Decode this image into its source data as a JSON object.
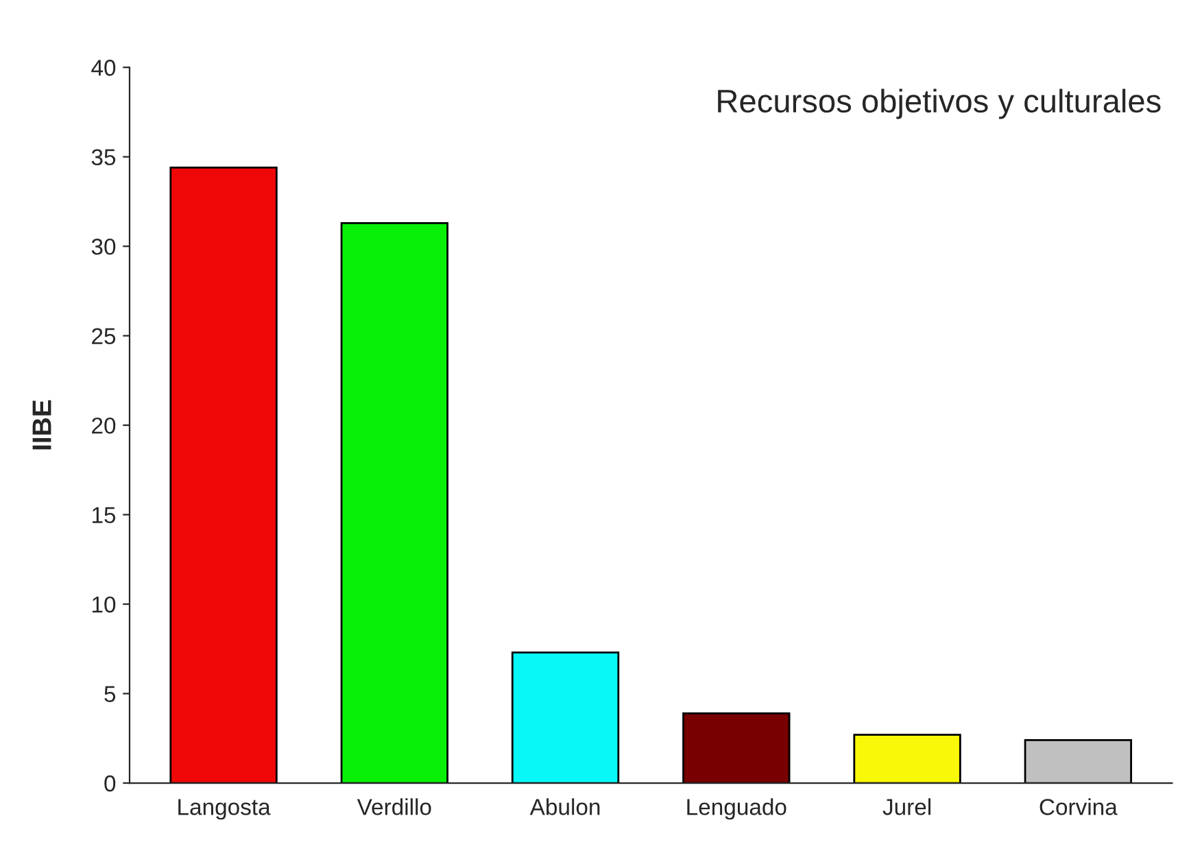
{
  "chart_data": {
    "type": "bar",
    "title": "Recursos objetivos y culturales",
    "ylabel": "IIBE",
    "categories": [
      "Langosta",
      "Verdillo",
      "Abulon",
      "Lenguado",
      "Jurel",
      "Corvina"
    ],
    "values": [
      34.4,
      31.3,
      7.3,
      3.9,
      2.7,
      2.4
    ],
    "colors": [
      "#f00808",
      "#08f008",
      "#08f8f8",
      "#780000",
      "#f8f808",
      "#c0c0c0"
    ],
    "ylim": [
      0,
      40
    ],
    "yticks": [
      0,
      5,
      10,
      15,
      20,
      25,
      30,
      35,
      40
    ],
    "grid": false,
    "legend": false
  }
}
